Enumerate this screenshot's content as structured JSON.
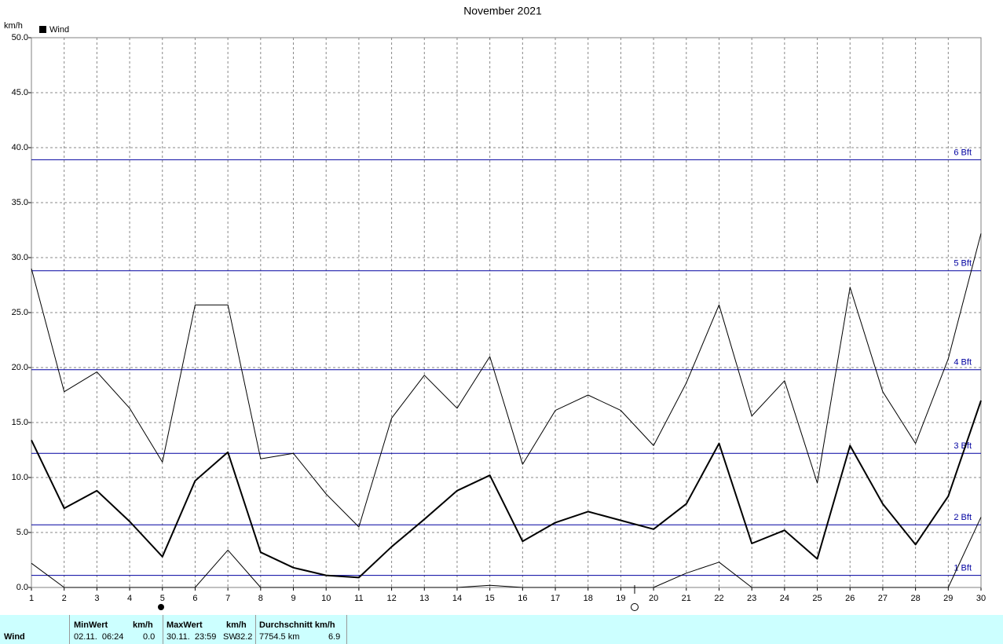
{
  "chart_data": {
    "type": "line",
    "title": "November 2021",
    "y_label": "km/h",
    "legend": "Wind",
    "legend_position": "top-left",
    "x": [
      1,
      2,
      3,
      4,
      5,
      6,
      7,
      8,
      9,
      10,
      11,
      12,
      13,
      14,
      15,
      16,
      17,
      18,
      19,
      20,
      21,
      22,
      23,
      24,
      25,
      26,
      27,
      28,
      29,
      30
    ],
    "xlim": [
      1,
      30
    ],
    "xticks": [
      1,
      2,
      3,
      4,
      5,
      6,
      7,
      8,
      9,
      10,
      11,
      12,
      13,
      14,
      15,
      16,
      17,
      18,
      19,
      20,
      21,
      22,
      23,
      24,
      25,
      26,
      27,
      28,
      29,
      30
    ],
    "ylim": [
      0,
      50
    ],
    "yticks": [
      {
        "value": 0,
        "label": "0.0"
      },
      {
        "value": 5,
        "label": "5.0"
      },
      {
        "value": 10,
        "label": "10.0"
      },
      {
        "value": 15,
        "label": "15.0"
      },
      {
        "value": 20,
        "label": "20.0"
      },
      {
        "value": 25,
        "label": "25.0"
      },
      {
        "value": 30,
        "label": "30.0"
      },
      {
        "value": 35,
        "label": "35.0"
      },
      {
        "value": 40,
        "label": "40.0"
      },
      {
        "value": 45,
        "label": "45.0"
      },
      {
        "value": 50,
        "label": "50.0"
      }
    ],
    "grid": true,
    "series": [
      {
        "color": "#000000",
        "line_width": 1,
        "values": [
          29.0,
          17.8,
          19.6,
          16.3,
          11.4,
          25.7,
          25.7,
          11.7,
          12.2,
          8.5,
          5.5,
          15.4,
          19.3,
          16.3,
          21.0,
          11.2,
          16.1,
          17.5,
          16.1,
          12.9,
          18.6,
          25.7,
          15.6,
          18.8,
          9.5,
          27.3,
          17.8,
          13.1,
          20.8,
          32.2
        ]
      },
      {
        "color": "#000000",
        "line_width": 2,
        "values": [
          13.4,
          7.2,
          8.8,
          6.0,
          2.8,
          9.7,
          12.3,
          3.2,
          1.8,
          1.1,
          0.9,
          3.7,
          6.2,
          8.8,
          10.2,
          4.2,
          5.9,
          6.9,
          6.1,
          5.3,
          7.6,
          13.1,
          4.0,
          5.2,
          2.6,
          12.9,
          7.6,
          3.9,
          8.3,
          17.0
        ]
      },
      {
        "color": "#000000",
        "line_width": 1,
        "values": [
          2.2,
          0,
          0,
          0,
          0,
          0,
          3.4,
          0,
          0,
          0,
          0,
          0,
          0,
          0,
          0.2,
          0,
          0,
          0,
          0,
          0,
          1.3,
          2.3,
          0,
          0,
          0,
          0,
          0,
          0,
          0,
          6.4
        ]
      }
    ],
    "reference_lines": {
      "color": "#0000a0",
      "lines": [
        {
          "value": 1.1,
          "label": "1 Bft"
        },
        {
          "value": 5.7,
          "label": "2 Bft"
        },
        {
          "value": 12.2,
          "label": "3 Bft"
        },
        {
          "value": 19.8,
          "label": "4 Bft"
        },
        {
          "value": 28.8,
          "label": "5 Bft"
        },
        {
          "value": 38.9,
          "label": "6 Bft"
        }
      ]
    }
  },
  "table": {
    "row_label": "Wind",
    "columns": [
      {
        "header": "MinWert",
        "unit": "km/h",
        "when": "02.11.  06:24",
        "value": "0.0"
      },
      {
        "header": "MaxWert",
        "unit": "km/h",
        "when": "30.11.  23:59",
        "direction": "SW",
        "value": "32.2"
      },
      {
        "header": "Durchschnitt km/h",
        "when": "7754.5 km",
        "value": "6.9"
      }
    ]
  }
}
